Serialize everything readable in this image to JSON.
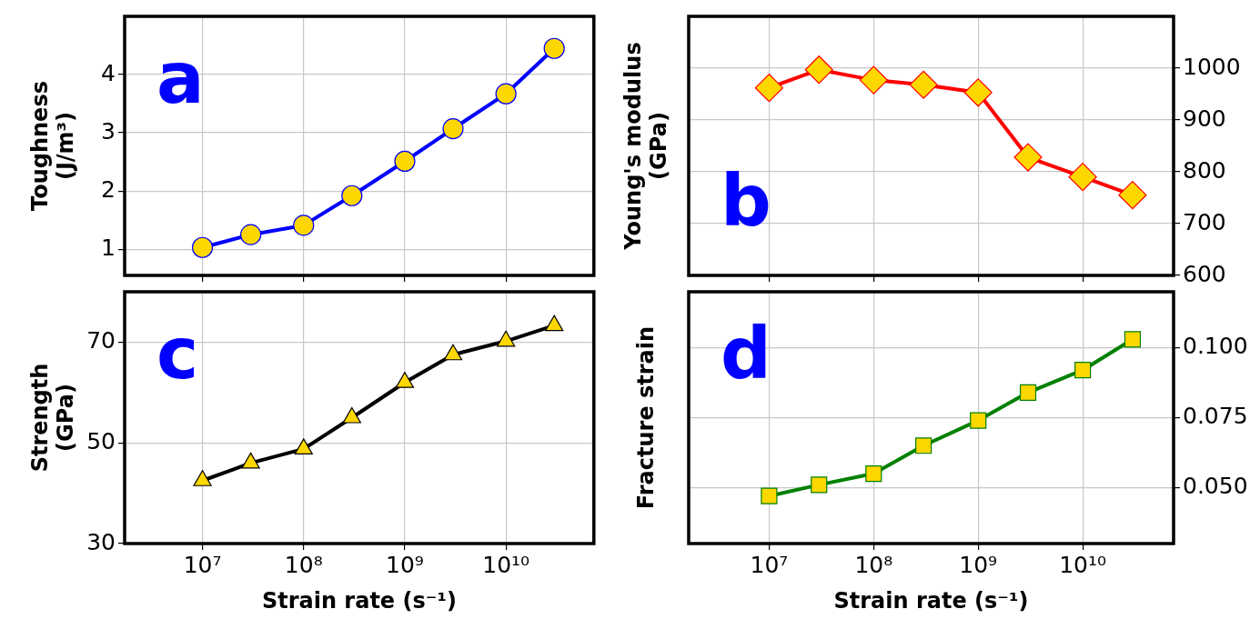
{
  "chart_data": [
    {
      "type": "line",
      "ylabel": "Toughness\n(J/m³)",
      "annotations": [
        "a"
      ],
      "log": "x",
      "grid": true,
      "marker": "circle",
      "tick_labels": "y",
      "x": [
        10000000.0,
        30000000.0,
        100000000.0,
        300000000.0,
        1000000000.0,
        3000000000.0,
        10000000000.0,
        30000000000.0
      ],
      "xlim": [
        1700000.0,
        74000000000.0
      ],
      "xticks": [
        {
          "value": 10000000.0,
          "label": null
        },
        {
          "value": 100000000.0,
          "label": null
        },
        {
          "value": 1000000000.0,
          "label": null
        },
        {
          "value": 10000000000.0,
          "label": null
        }
      ],
      "ylim": [
        0.55,
        5.0
      ],
      "yticks": [
        1,
        2,
        3,
        4
      ],
      "series": [
        {
          "color": "#0000ff",
          "colors": [
            "#ffd700",
            "#ffd700",
            "#ffd700",
            "#ffd700",
            "#ffd700",
            "#ffd700",
            "#ffd700",
            "#ffd700"
          ],
          "values": [
            1.03,
            1.25,
            1.41,
            1.92,
            2.51,
            3.07,
            3.67,
            4.45
          ]
        }
      ]
    },
    {
      "type": "line",
      "y2label": "Young's modulus\n(GPa)",
      "annotations": [
        "b"
      ],
      "log": "x",
      "grid": true,
      "marker": "diamond",
      "tick_labels": "y",
      "x": [
        10000000.0,
        30000000.0,
        100000000.0,
        300000000.0,
        1000000000.0,
        3000000000.0,
        10000000000.0,
        30000000000.0
      ],
      "xlim": [
        1700000.0,
        74000000000.0
      ],
      "xticks": [
        {
          "value": 10000000.0,
          "label": null
        },
        {
          "value": 100000000.0,
          "label": null
        },
        {
          "value": 1000000000.0,
          "label": null
        },
        {
          "value": 10000000000.0,
          "label": null
        }
      ],
      "y2lim": [
        600,
        1100
      ],
      "y2ticks": [
        600,
        700,
        800,
        900,
        1000
      ],
      "series": [
        {
          "color": "#ff0000",
          "axis": "y2",
          "colors": [
            "#ffd700",
            "#ffd700",
            "#ffd700",
            "#ffd700",
            "#ffd700",
            "#ffd700",
            "#ffd700",
            "#ffd700"
          ],
          "values": [
            962,
            997,
            977,
            968,
            953,
            828,
            790,
            755
          ]
        }
      ]
    },
    {
      "type": "line",
      "ylabel": "Strength\n(GPa)",
      "xlabel": "Strain rate (s⁻¹)",
      "annotations": [
        "c"
      ],
      "log": "x",
      "grid": true,
      "marker": "triangle",
      "x": [
        10000000.0,
        30000000.0,
        100000000.0,
        300000000.0,
        1000000000.0,
        3000000000.0,
        10000000000.0,
        30000000000.0
      ],
      "xlim": [
        1700000.0,
        74000000000.0
      ],
      "xticks": [
        {
          "value": 10000000.0,
          "label": "10⁷"
        },
        {
          "value": 100000000.0,
          "label": "10⁸"
        },
        {
          "value": 1000000000.0,
          "label": "10⁹"
        },
        {
          "value": 10000000000.0,
          "label": "10¹⁰"
        }
      ],
      "ylim": [
        30,
        80
      ],
      "yticks": [
        30,
        50,
        70
      ],
      "series": [
        {
          "color": "#000000",
          "colors": [
            "#ffd700",
            "#ffd700",
            "#ffd700",
            "#ffd700",
            "#ffd700",
            "#ffd700",
            "#ffd700",
            "#ffd700"
          ],
          "values": [
            42.5,
            46,
            48.8,
            55,
            62,
            67.5,
            70.2,
            73.3
          ]
        }
      ]
    },
    {
      "type": "line",
      "y2label": "Fracture strain",
      "xlabel": "Strain rate (s⁻¹)",
      "annotations": [
        "d"
      ],
      "log": "x",
      "grid": true,
      "marker": "square",
      "x": [
        10000000.0,
        30000000.0,
        100000000.0,
        300000000.0,
        1000000000.0,
        3000000000.0,
        10000000000.0,
        30000000000.0
      ],
      "xlim": [
        1700000.0,
        74000000000.0
      ],
      "xticks": [
        {
          "value": 10000000.0,
          "label": "10⁷"
        },
        {
          "value": 100000000.0,
          "label": "10⁸"
        },
        {
          "value": 1000000000.0,
          "label": "10⁹"
        },
        {
          "value": 10000000000.0,
          "label": "10¹⁰"
        }
      ],
      "y2lim": [
        0.03,
        0.12
      ],
      "y2ticks": [
        {
          "value": 0.05,
          "label": "0.050"
        },
        {
          "value": 0.075,
          "label": "0.075"
        },
        {
          "value": 0.1,
          "label": "0.100"
        }
      ],
      "series": [
        {
          "color": "#008000",
          "axis": "y2",
          "colors": [
            "#ffd700",
            "#ffd700",
            "#ffd700",
            "#ffd700",
            "#ffd700",
            "#ffd700",
            "#ffd700",
            "#ffd700"
          ],
          "values": [
            0.047,
            0.051,
            0.055,
            0.065,
            0.074,
            0.084,
            0.092,
            0.103
          ]
        }
      ]
    }
  ]
}
